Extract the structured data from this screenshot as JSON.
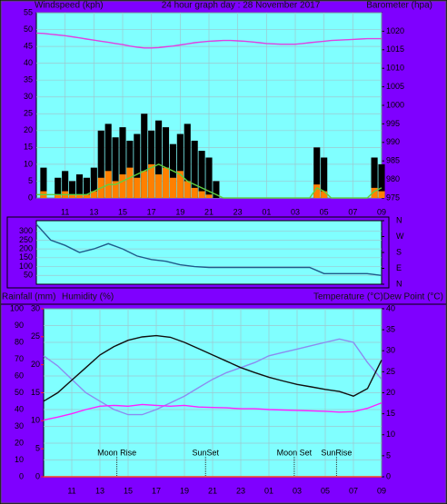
{
  "chart_data": [
    {
      "type": "bar",
      "title": "24 hour graph day : 28 November 2017",
      "ylabel": "Windspeed (kph)",
      "y2label": "Barometer (hpa)",
      "x": [
        0,
        0.5,
        1,
        1.5,
        2,
        2.5,
        3,
        3.5,
        4,
        4.5,
        5,
        5.5,
        6,
        6.5,
        7,
        7.5,
        8,
        8.5,
        9,
        9.5,
        10,
        10.5,
        11,
        11.5,
        12,
        12.5,
        13,
        13.5,
        14,
        14.5,
        15,
        15.5,
        16,
        16.5,
        17,
        17.5,
        18,
        18.5,
        19,
        19.5,
        20,
        20.5,
        21,
        21.5,
        22,
        22.5,
        23,
        23.5,
        24
      ],
      "xlim": [
        0,
        24
      ],
      "xticks": [
        {
          "value": 2,
          "label": "11"
        },
        {
          "value": 4,
          "label": "13"
        },
        {
          "value": 6,
          "label": "15"
        },
        {
          "value": 8,
          "label": "17"
        },
        {
          "value": 10,
          "label": "19"
        },
        {
          "value": 12,
          "label": "21"
        },
        {
          "value": 14,
          "label": "23"
        },
        {
          "value": 16,
          "label": "01"
        },
        {
          "value": 18,
          "label": "03"
        },
        {
          "value": 20,
          "label": "05"
        },
        {
          "value": 22,
          "label": "07"
        },
        {
          "value": 24,
          "label": "09"
        }
      ],
      "ylim": [
        0,
        55
      ],
      "yticks": [
        0,
        5,
        10,
        15,
        20,
        25,
        30,
        35,
        40,
        45,
        50,
        55
      ],
      "y2lim": [
        975,
        1025
      ],
      "y2ticks": [
        975,
        980,
        985,
        990,
        995,
        1000,
        1005,
        1010,
        1015,
        1020
      ],
      "y2tick_color": "#ff40ff",
      "grid": true,
      "series": [
        {
          "type": "bar",
          "color": "#000000",
          "values": [
            0,
            9,
            0,
            6,
            8,
            5,
            7,
            6,
            9,
            20,
            22,
            18,
            21,
            17,
            19,
            25,
            20,
            23,
            21,
            16,
            19,
            22,
            17,
            14,
            12,
            5,
            0,
            0,
            0,
            0,
            0,
            0,
            0,
            0,
            0,
            0,
            0,
            0,
            0,
            15,
            12,
            0,
            0,
            0,
            0,
            0,
            0,
            12,
            10
          ]
        },
        {
          "type": "bar",
          "color": "#ff8000",
          "values": [
            0,
            2,
            0,
            1,
            2,
            1,
            1,
            1,
            2,
            6,
            8,
            5,
            7,
            9,
            6,
            8,
            10,
            7,
            9,
            6,
            8,
            5,
            3,
            2,
            1,
            0,
            0,
            0,
            0,
            0,
            0,
            0,
            0,
            0,
            0,
            0,
            0,
            0,
            0,
            4,
            2,
            0,
            0,
            0,
            0,
            0,
            0,
            3,
            2
          ]
        },
        {
          "type": "line",
          "color": "#60d040",
          "values": [
            1,
            1,
            1,
            1,
            1,
            1,
            1,
            1,
            2,
            3,
            4,
            4,
            5,
            6,
            7,
            8,
            9,
            10,
            9,
            8,
            7,
            5,
            4,
            3,
            2,
            1,
            0,
            0,
            0,
            0,
            0,
            0,
            0,
            0,
            0,
            0,
            0,
            0,
            0,
            3,
            2,
            0,
            0,
            0,
            0,
            0,
            0,
            2,
            3
          ]
        },
        {
          "type": "line",
          "color": "#e040e0",
          "axis": "y2",
          "values": [
            1019.5,
            1019.4,
            1019.2,
            1019.0,
            1018.8,
            1018.5,
            1018.2,
            1017.9,
            1017.6,
            1017.3,
            1017.0,
            1016.7,
            1016.4,
            1016.0,
            1015.7,
            1015.5,
            1015.5,
            1015.6,
            1015.8,
            1016.0,
            1016.3,
            1016.6,
            1016.9,
            1017.1,
            1017.3,
            1017.4,
            1017.5,
            1017.5,
            1017.4,
            1017.3,
            1017.1,
            1016.9,
            1016.7,
            1016.6,
            1016.5,
            1016.5,
            1016.5,
            1016.7,
            1016.9,
            1017.1,
            1017.3,
            1017.5,
            1017.6,
            1017.7,
            1017.8,
            1017.9,
            1018.0,
            1018.0,
            1018.0
          ]
        }
      ]
    },
    {
      "type": "line",
      "x": [
        0,
        1,
        2,
        3,
        4,
        5,
        6,
        7,
        8,
        9,
        10,
        11,
        12,
        13,
        14,
        15,
        16,
        17,
        18,
        19,
        20,
        21,
        22,
        23,
        24
      ],
      "xlim": [
        0,
        24
      ],
      "ylim": [
        0,
        360
      ],
      "yticks": [
        50,
        100,
        150,
        200,
        250,
        300
      ],
      "y2lim": [
        0,
        360
      ],
      "y2ticks": [
        {
          "value": 360,
          "label": "N"
        },
        {
          "value": 270,
          "label": "W"
        },
        {
          "value": 180,
          "label": "S"
        },
        {
          "value": 90,
          "label": "E"
        },
        {
          "value": 0,
          "label": "N"
        }
      ],
      "grid": true,
      "series": [
        {
          "color": "#205a8a",
          "values": [
            340,
            250,
            220,
            180,
            200,
            230,
            200,
            160,
            140,
            130,
            110,
            100,
            95,
            95,
            95,
            95,
            95,
            95,
            95,
            95,
            60,
            60,
            60,
            60,
            50
          ]
        }
      ]
    },
    {
      "type": "line",
      "ylabel": "Humidity (%)",
      "y2label": "Temperature (°C)Dew Point (°C)",
      "y3label": "Rainfall (mm)",
      "x": [
        0,
        1,
        2,
        3,
        4,
        5,
        6,
        7,
        8,
        9,
        10,
        11,
        12,
        13,
        14,
        15,
        16,
        17,
        18,
        19,
        20,
        21,
        22,
        23,
        24
      ],
      "xlim": [
        0,
        24
      ],
      "xticks": [
        {
          "value": 2,
          "label": "11"
        },
        {
          "value": 4,
          "label": "13"
        },
        {
          "value": 6,
          "label": "15"
        },
        {
          "value": 8,
          "label": "17"
        },
        {
          "value": 10,
          "label": "19"
        },
        {
          "value": 12,
          "label": "21"
        },
        {
          "value": 14,
          "label": "23"
        },
        {
          "value": 16,
          "label": "01"
        },
        {
          "value": 18,
          "label": "03"
        },
        {
          "value": 20,
          "label": "05"
        },
        {
          "value": 22,
          "label": "07"
        },
        {
          "value": 24,
          "label": "09"
        }
      ],
      "ylim": [
        0,
        100
      ],
      "yticks": [
        0,
        10,
        20,
        30,
        40,
        50,
        60,
        70,
        80,
        90,
        100
      ],
      "y2lim": [
        0,
        40
      ],
      "y2ticks": [
        0,
        5,
        10,
        15,
        20,
        25,
        30,
        35,
        40
      ],
      "y3lim": [
        0,
        30
      ],
      "y3ticks": [
        0,
        5,
        10,
        15,
        20,
        25,
        30
      ],
      "y3tick_color": "#ff2020",
      "grid": true,
      "annotations": [
        {
          "text": "Moon Rise",
          "x": 5.2
        },
        {
          "text": "SunSet",
          "x": 11.5
        },
        {
          "text": "Moon Set",
          "x": 17.8
        },
        {
          "text": "SunRise",
          "x": 20.8
        }
      ],
      "series": [
        {
          "color": "#8c8cf0",
          "values": [
            72,
            66,
            58,
            50,
            45,
            40,
            37,
            37,
            40,
            44,
            48,
            53,
            58,
            62,
            65,
            68,
            72,
            74,
            76,
            78,
            80,
            82,
            80,
            68,
            58
          ]
        },
        {
          "color": "#ff20ff",
          "axis": "y2",
          "values": [
            13.5,
            14.2,
            15,
            16,
            16.8,
            17,
            16.8,
            17.2,
            17,
            16.8,
            17,
            16.6,
            16.5,
            16.4,
            16.2,
            16.2,
            16,
            15.9,
            15.8,
            15.7,
            15.6,
            15.4,
            15.5,
            16.3,
            17.6
          ]
        },
        {
          "color": "#101010",
          "axis": "y2",
          "values": [
            18,
            20,
            23,
            26,
            29,
            31,
            32.5,
            33.3,
            33.6,
            33.2,
            32,
            30.5,
            29,
            27.5,
            26,
            24.8,
            23.7,
            22.8,
            22,
            21.4,
            20.8,
            20.3,
            19.2,
            21,
            27.8
          ]
        },
        {
          "color": "#ff4020",
          "axis": "y3",
          "values": [
            0,
            0,
            0,
            0,
            0,
            0,
            0,
            0,
            0,
            0,
            0,
            0,
            0,
            0,
            0,
            0,
            0,
            0,
            0,
            0,
            0,
            0,
            0,
            0,
            0
          ]
        }
      ]
    }
  ]
}
